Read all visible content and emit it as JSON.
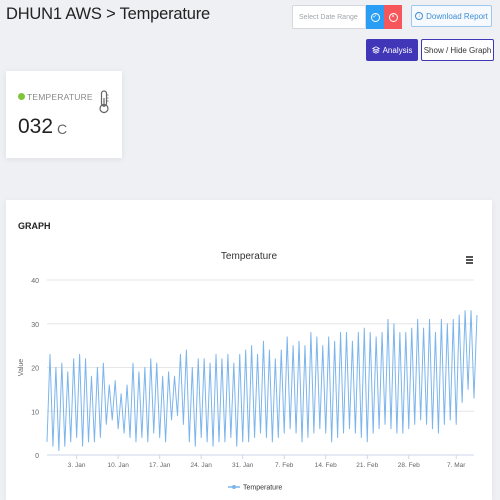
{
  "header": {
    "title": "DHUN1 AWS > Temperature",
    "date_placeholder": "Select Date Range",
    "download_label": "Download Report",
    "analysis_label": "Analysis",
    "showhide_label": "Show / Hide Graph"
  },
  "temperature_card": {
    "label": "TEMPERATURE",
    "value": "032",
    "unit": "C",
    "status_color": "#7ec53a"
  },
  "graph_card": {
    "heading": "GRAPH"
  },
  "chart_data": {
    "type": "line",
    "title": "Temperature",
    "xlabel": "",
    "ylabel": "Value",
    "ylim": [
      0,
      40
    ],
    "y_ticks": [
      0,
      10,
      20,
      30,
      40
    ],
    "x_ticks": [
      "3. Jan",
      "10. Jan",
      "17. Jan",
      "24. Jan",
      "31. Jan",
      "7. Feb",
      "14. Feb",
      "21. Feb",
      "28. Feb",
      "7. Mar"
    ],
    "x_range": [
      "2019-12-29",
      "2020-03-10"
    ],
    "grid": true,
    "legend": "bottom-center",
    "series": [
      {
        "name": "Temperature",
        "color": "#7cb5ec",
        "x": [
          "2019-12-29",
          "2019-12-30",
          "2019-12-31",
          "2020-01-01",
          "2020-01-02",
          "2020-01-03",
          "2020-01-04",
          "2020-01-05",
          "2020-01-06",
          "2020-01-07",
          "2020-01-08",
          "2020-01-09",
          "2020-01-10",
          "2020-01-11",
          "2020-01-12",
          "2020-01-13",
          "2020-01-14",
          "2020-01-15",
          "2020-01-16",
          "2020-01-17",
          "2020-01-18",
          "2020-01-19",
          "2020-01-20",
          "2020-01-21",
          "2020-01-22",
          "2020-01-23",
          "2020-01-24",
          "2020-01-25",
          "2020-01-26",
          "2020-01-27",
          "2020-01-28",
          "2020-01-29",
          "2020-01-30",
          "2020-01-31",
          "2020-02-01",
          "2020-02-02",
          "2020-02-03",
          "2020-02-04",
          "2020-02-05",
          "2020-02-06",
          "2020-02-07",
          "2020-02-08",
          "2020-02-09",
          "2020-02-10",
          "2020-02-11",
          "2020-02-12",
          "2020-02-13",
          "2020-02-14",
          "2020-02-15",
          "2020-02-16",
          "2020-02-17",
          "2020-02-18",
          "2020-02-19",
          "2020-02-20",
          "2020-02-21",
          "2020-02-22",
          "2020-02-23",
          "2020-02-24",
          "2020-02-25",
          "2020-02-26",
          "2020-02-27",
          "2020-02-28",
          "2020-02-29",
          "2020-03-01",
          "2020-03-02",
          "2020-03-03",
          "2020-03-04",
          "2020-03-05",
          "2020-03-06",
          "2020-03-07",
          "2020-03-08",
          "2020-03-09",
          "2020-03-10"
        ],
        "max": [
          23,
          20,
          21,
          19,
          22,
          23,
          22,
          18,
          20,
          21,
          16,
          17,
          14,
          16,
          21,
          19,
          20,
          22,
          21,
          18,
          19,
          18,
          23,
          24,
          20,
          22,
          22,
          21,
          23,
          22,
          23,
          21,
          23,
          24,
          25,
          23,
          26,
          24,
          22,
          24,
          27,
          25,
          26,
          25,
          28,
          27,
          25,
          27,
          26,
          28,
          28,
          26,
          28,
          29,
          28,
          27,
          28,
          31,
          30,
          28,
          28,
          29,
          31,
          29,
          31,
          28,
          31,
          30,
          31,
          32,
          33,
          33,
          32
        ],
        "min": [
          3,
          2,
          1,
          2,
          3,
          4,
          2,
          3,
          3,
          4,
          7,
          8,
          6,
          5,
          4,
          3,
          4,
          3,
          5,
          4,
          3,
          8,
          9,
          7,
          3,
          2,
          4,
          3,
          2,
          3,
          3,
          4,
          2,
          3,
          3,
          4,
          5,
          4,
          3,
          4,
          5,
          6,
          5,
          3,
          4,
          5,
          6,
          5,
          3,
          4,
          5,
          6,
          5,
          4,
          3,
          5,
          6,
          7,
          6,
          5,
          5,
          6,
          7,
          8,
          7,
          6,
          5,
          7,
          8,
          7,
          12,
          15,
          13
        ]
      }
    ]
  }
}
